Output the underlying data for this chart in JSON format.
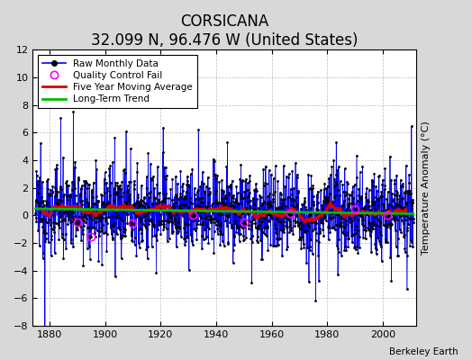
{
  "title": "CORSICANA",
  "subtitle": "32.099 N, 96.476 W (United States)",
  "ylabel": "Temperature Anomaly (°C)",
  "credit": "Berkeley Earth",
  "year_start": 1875,
  "year_end": 2011,
  "ylim": [
    -8,
    12
  ],
  "yticks": [
    -8,
    -6,
    -4,
    -2,
    0,
    2,
    4,
    6,
    8,
    10,
    12
  ],
  "xticks": [
    1880,
    1900,
    1920,
    1940,
    1960,
    1980,
    2000
  ],
  "raw_color": "#0000EE",
  "trend_color": "#00BB00",
  "moving_avg_color": "#DD0000",
  "qc_fail_color": "#FF00FF",
  "background_color": "#D8D8D8",
  "plot_bg_color": "#FFFFFF",
  "grid_color": "#BBBBBB",
  "title_fontsize": 12,
  "subtitle_fontsize": 9,
  "tick_fontsize": 8,
  "legend_fontsize": 7.5,
  "seed": 12345,
  "n_months": 1632,
  "noise_std": 1.7,
  "spike_count": 25,
  "qc_indices": [
    180,
    420,
    680,
    1100,
    1380,
    1520,
    240,
    900
  ],
  "moving_avg_window": 60,
  "trend_slope": -0.001
}
